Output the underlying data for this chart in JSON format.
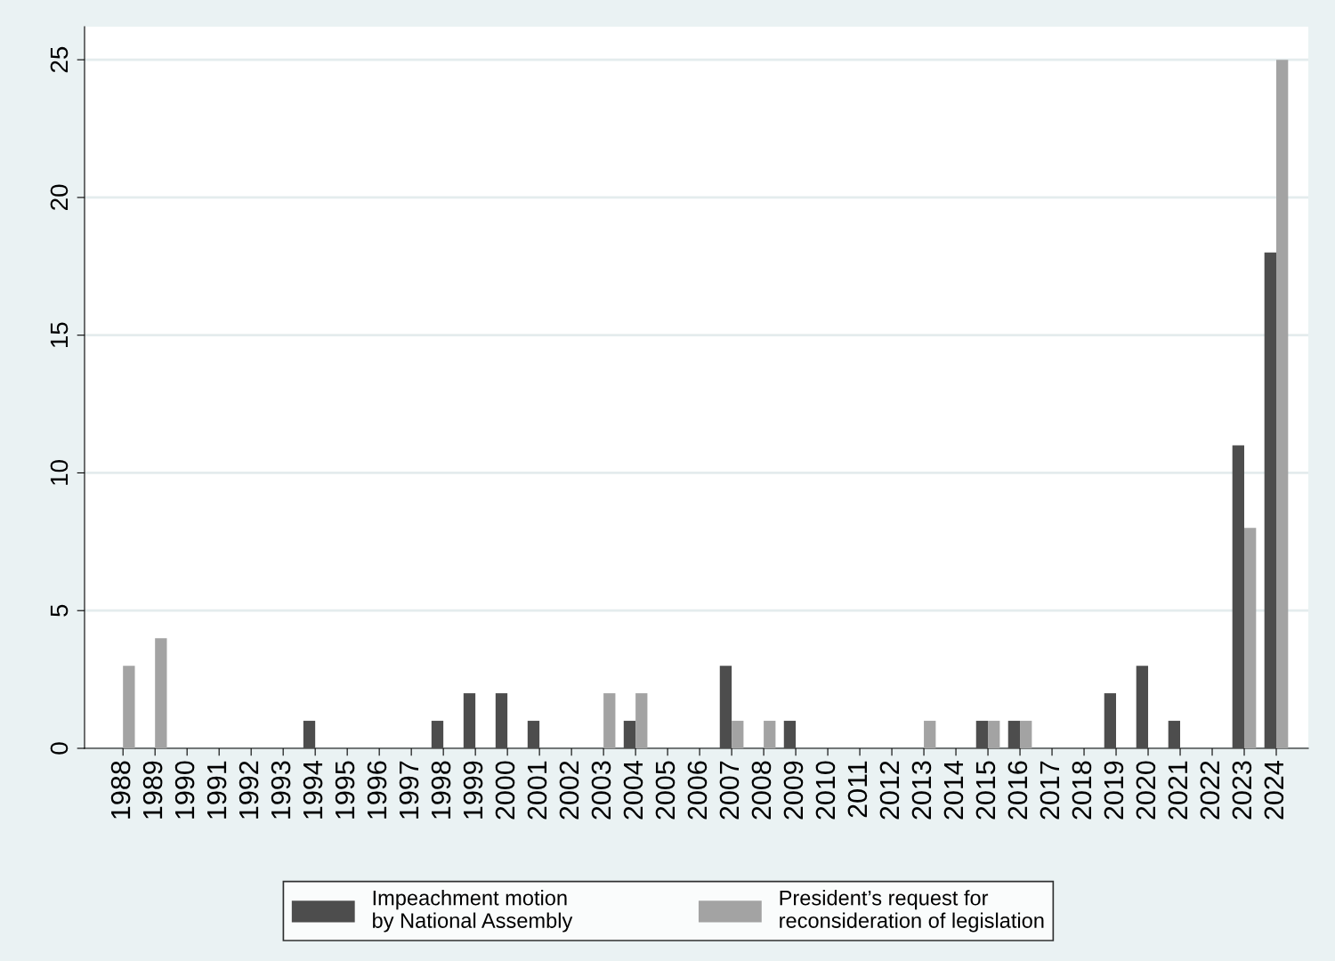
{
  "chart_data": {
    "type": "bar",
    "categories": [
      "1988",
      "1989",
      "1990",
      "1991",
      "1992",
      "1993",
      "1994",
      "1995",
      "1996",
      "1997",
      "1998",
      "1999",
      "2000",
      "2001",
      "2002",
      "2003",
      "2004",
      "2005",
      "2006",
      "2007",
      "2008",
      "2009",
      "2010",
      "2011",
      "2012",
      "2013",
      "2014",
      "2015",
      "2016",
      "2017",
      "2018",
      "2019",
      "2020",
      "2021",
      "2022",
      "2023",
      "2024"
    ],
    "series": [
      {
        "name": "Impeachment motion\nby National Assembly",
        "color": "#4d4d4d",
        "values": [
          0,
          0,
          0,
          0,
          0,
          0,
          1,
          0,
          0,
          0,
          1,
          2,
          2,
          1,
          0,
          0,
          1,
          0,
          0,
          3,
          0,
          1,
          0,
          0,
          0,
          0,
          0,
          1,
          1,
          0,
          0,
          2,
          3,
          1,
          0,
          11,
          18
        ]
      },
      {
        "name": "President’s request for\nreconsideration of legislation",
        "color": "#a3a3a3",
        "values": [
          3,
          4,
          0,
          0,
          0,
          0,
          0,
          0,
          0,
          0,
          0,
          0,
          0,
          0,
          0,
          2,
          2,
          0,
          0,
          1,
          1,
          0,
          0,
          0,
          0,
          1,
          0,
          1,
          1,
          0,
          0,
          0,
          0,
          0,
          0,
          8,
          25
        ]
      }
    ],
    "ylim": [
      0,
      26.2
    ],
    "yticks": [
      0,
      5,
      10,
      15,
      20,
      25
    ],
    "grid": "y",
    "legend": "bottom"
  }
}
